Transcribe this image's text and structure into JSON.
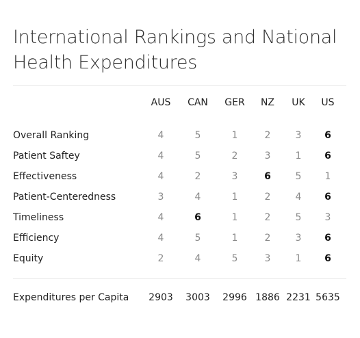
{
  "title": "International Rankings and National Health Expenditures",
  "columns": [
    "AUS",
    "CAN",
    "GER",
    "NZ",
    "UK",
    "US"
  ],
  "rows": [
    {
      "label": "Overall Ranking",
      "values": [
        "4",
        "5",
        "1",
        "2",
        "3",
        "6"
      ],
      "bold_index": 5
    },
    {
      "label": "Patient Saftey",
      "values": [
        "4",
        "5",
        "2",
        "3",
        "1",
        "6"
      ],
      "bold_index": 5
    },
    {
      "label": "Effectiveness",
      "values": [
        "4",
        "2",
        "3",
        "6",
        "5",
        "1"
      ],
      "bold_index": 3
    },
    {
      "label": "Patient-Centeredness",
      "values": [
        "3",
        "4",
        "1",
        "2",
        "4",
        "6"
      ],
      "bold_index": 5
    },
    {
      "label": "Timeliness",
      "values": [
        "4",
        "6",
        "1",
        "2",
        "5",
        "3"
      ],
      "bold_index": 1
    },
    {
      "label": "Efficiency",
      "values": [
        "4",
        "5",
        "1",
        "2",
        "3",
        "6"
      ],
      "bold_index": 5
    },
    {
      "label": "Equity",
      "values": [
        "2",
        "4",
        "5",
        "3",
        "1",
        "6"
      ],
      "bold_index": 5
    }
  ],
  "expenditures": {
    "label": "Expenditures per Capita",
    "values": [
      "2903",
      "3003",
      "2996",
      "1886",
      "2231",
      "5635"
    ]
  },
  "colors": {
    "muted": "#8a8a8a",
    "emphasis": "#111111",
    "rule": "#e6e6e6"
  }
}
